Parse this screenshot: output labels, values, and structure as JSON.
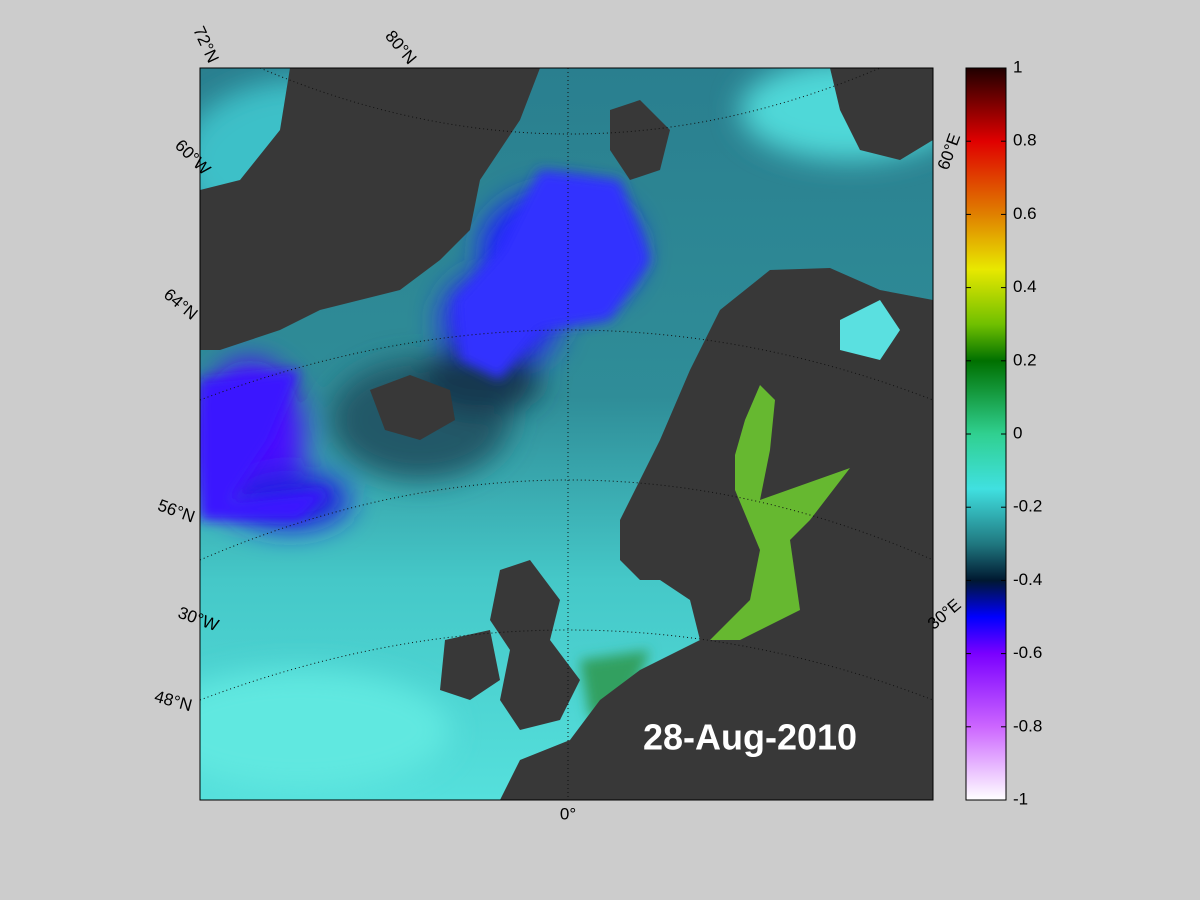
{
  "date": "28-Aug-2010",
  "graticule_labels": [
    "72°N",
    "80°N",
    "60°W",
    "64°N",
    "56°N",
    "30°W",
    "48°N",
    "0°",
    "60°E",
    "30°E"
  ],
  "colorbar": {
    "lim": [
      -1,
      1
    ],
    "ticks": [
      -1,
      -0.8,
      -0.6,
      -0.4,
      -0.2,
      0,
      0.2,
      0.4,
      0.6,
      0.8,
      1
    ],
    "colors": [
      {
        "value": -1,
        "color": "#ffffff"
      },
      {
        "value": -0.8,
        "color": "#cc66ff"
      },
      {
        "value": -0.6,
        "color": "#7a00ff"
      },
      {
        "value": -0.5,
        "color": "#0000ff"
      },
      {
        "value": -0.4,
        "color": "#001830"
      },
      {
        "value": -0.3,
        "color": "#207880"
      },
      {
        "value": -0.15,
        "color": "#40e0e0"
      },
      {
        "value": 0,
        "color": "#30d090"
      },
      {
        "value": 0.2,
        "color": "#007000"
      },
      {
        "value": 0.3,
        "color": "#70c000"
      },
      {
        "value": 0.45,
        "color": "#e8e800"
      },
      {
        "value": 0.6,
        "color": "#e08000"
      },
      {
        "value": 0.8,
        "color": "#e00000"
      },
      {
        "value": 1,
        "color": "#200000"
      }
    ]
  }
}
